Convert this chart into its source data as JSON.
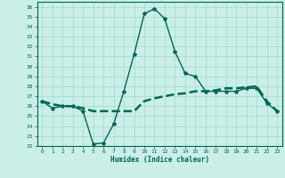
{
  "xlabel": "Humidex (Indice chaleur)",
  "ylabel": "",
  "bg_color": "#cceee8",
  "grid_color": "#99ddcc",
  "line_color": "#006655",
  "xlim": [
    -0.5,
    23.5
  ],
  "ylim": [
    22,
    36.5
  ],
  "yticks": [
    22,
    23,
    24,
    25,
    26,
    27,
    28,
    29,
    30,
    31,
    32,
    33,
    34,
    35,
    36
  ],
  "xticks": [
    0,
    1,
    2,
    3,
    4,
    5,
    6,
    7,
    8,
    9,
    10,
    11,
    12,
    13,
    14,
    15,
    16,
    17,
    18,
    19,
    20,
    21,
    22,
    23
  ],
  "line1_x": [
    0,
    1,
    2,
    3,
    4,
    5,
    6,
    7,
    8,
    9,
    10,
    11,
    12,
    13,
    14,
    15,
    16,
    17,
    18,
    19,
    20,
    21,
    22,
    23
  ],
  "line1_y": [
    26.5,
    25.8,
    26.0,
    26.0,
    25.5,
    22.2,
    22.3,
    24.2,
    27.5,
    31.2,
    35.3,
    35.8,
    34.8,
    31.5,
    29.3,
    29.0,
    27.5,
    27.5,
    27.5,
    27.5,
    27.8,
    27.8,
    26.3,
    25.5
  ],
  "line2_x": [
    0,
    1,
    2,
    3,
    4,
    5,
    6,
    7,
    8,
    9,
    10,
    11,
    12,
    13,
    14,
    15,
    16,
    17,
    18,
    19,
    20,
    21,
    22,
    23
  ],
  "line2_y": [
    26.5,
    26.2,
    26.0,
    26.0,
    25.8,
    25.5,
    25.5,
    25.5,
    25.5,
    25.5,
    26.5,
    26.8,
    27.0,
    27.2,
    27.3,
    27.5,
    27.5,
    27.6,
    27.8,
    27.8,
    27.9,
    28.0,
    26.5,
    25.5
  ]
}
